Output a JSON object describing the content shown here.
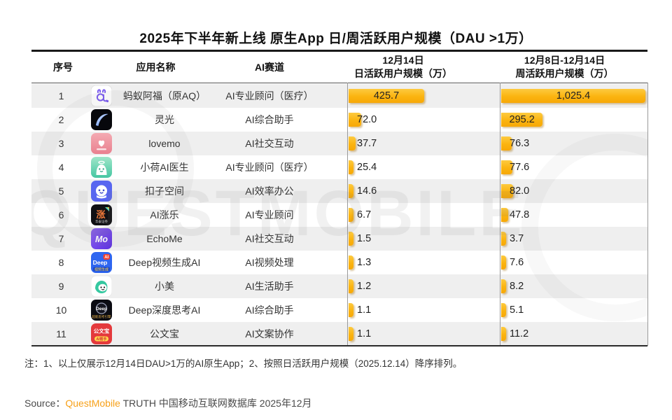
{
  "title": "2025年下半年新上线 原生App 日/周活跃用户规模（DAU >1万）",
  "table": {
    "columns": {
      "num": "序号",
      "name": "应用名称",
      "track": "AI赛道",
      "dau_line1": "12月14日",
      "dau_line2": "日活跃用户规模（万）",
      "wau_line1": "12月8日-12月14日",
      "wau_line2": "周活跃用户规模（万）"
    },
    "rows": [
      {
        "num": "1",
        "icon": "aq",
        "name": "蚂蚁阿福（原AQ）",
        "track": "AI专业顾问（医疗）",
        "dau": 425.7,
        "dau_label": "425.7",
        "wau": 1025.4,
        "wau_label": "1,025.4"
      },
      {
        "num": "2",
        "icon": "lingguang",
        "name": "灵光",
        "track": "AI综合助手",
        "dau": 72.0,
        "dau_label": "72.0",
        "wau": 295.2,
        "wau_label": "295.2"
      },
      {
        "num": "3",
        "icon": "lovemo",
        "name": "lovemo",
        "track": "AI社交互动",
        "dau": 37.7,
        "dau_label": "37.7",
        "wau": 76.3,
        "wau_label": "76.3"
      },
      {
        "num": "4",
        "icon": "xiaohe",
        "name": "小荷AI医生",
        "track": "AI专业顾问（医疗）",
        "dau": 25.4,
        "dau_label": "25.4",
        "wau": 77.6,
        "wau_label": "77.6"
      },
      {
        "num": "5",
        "icon": "kouzi",
        "name": "扣子空间",
        "track": "AI效率办公",
        "dau": 14.6,
        "dau_label": "14.6",
        "wau": 82.0,
        "wau_label": "82.0"
      },
      {
        "num": "6",
        "icon": "zhangle",
        "name": "AI涨乐",
        "track": "AI专业顾问",
        "dau": 6.7,
        "dau_label": "6.7",
        "wau": 47.8,
        "wau_label": "47.8"
      },
      {
        "num": "7",
        "icon": "echome",
        "name": "EchoMe",
        "track": "AI社交互动",
        "dau": 1.5,
        "dau_label": "1.5",
        "wau": 3.7,
        "wau_label": "3.7"
      },
      {
        "num": "8",
        "icon": "deepvideo",
        "name": "Deep视频生成AI",
        "track": "AI视频处理",
        "dau": 1.3,
        "dau_label": "1.3",
        "wau": 7.6,
        "wau_label": "7.6"
      },
      {
        "num": "9",
        "icon": "xiaomei",
        "name": "小美",
        "track": "AI生活助手",
        "dau": 1.2,
        "dau_label": "1.2",
        "wau": 8.2,
        "wau_label": "8.2"
      },
      {
        "num": "10",
        "icon": "deepthink",
        "name": "Deep深度思考AI",
        "track": "AI综合助手",
        "dau": 1.1,
        "dau_label": "1.1",
        "wau": 5.1,
        "wau_label": "5.1"
      },
      {
        "num": "11",
        "icon": "gongwenbao",
        "name": "公文宝",
        "track": "AI文案协作",
        "dau": 1.1,
        "dau_label": "1.1",
        "wau": 11.2,
        "wau_label": "11.2"
      }
    ]
  },
  "chart_data": {
    "type": "bar",
    "orientation": "horizontal",
    "title": "2025年下半年新上线 原生App 日/周活跃用户规模（DAU >1万）",
    "categories": [
      "蚂蚁阿福（原AQ）",
      "灵光",
      "lovemo",
      "小荷AI医生",
      "扣子空间",
      "AI涨乐",
      "EchoMe",
      "Deep视频生成AI",
      "小美",
      "Deep深度思考AI",
      "公文宝"
    ],
    "series": [
      {
        "name": "12月14日 日活跃用户规模（万）",
        "values": [
          425.7,
          72.0,
          37.7,
          25.4,
          14.6,
          6.7,
          1.5,
          1.3,
          1.2,
          1.1,
          1.1
        ]
      },
      {
        "name": "12月8日-12月14日 周活跃用户规模（万）",
        "values": [
          1025.4,
          295.2,
          76.3,
          77.6,
          82.0,
          47.8,
          3.7,
          7.6,
          8.2,
          5.1,
          11.2
        ]
      }
    ],
    "xlabel": "活跃用户规模（万）",
    "ylabel": "应用名称",
    "legend_position": "column-headers",
    "grid": false,
    "axis_ranges": {
      "dau_max": 425.7,
      "wau_max": 1025.4
    }
  },
  "note": "注：1、以上仅展示12月14日DAU>1万的AI原生App；2、按照日活跃用户规模（2025.12.14）降序排列。",
  "source": {
    "label": "Source：",
    "brand": "QuestMobile",
    "rest": " TRUTH 中国移动互联网数据库 2025年12月"
  },
  "watermark": "QUESTMOBILE",
  "colors": {
    "bar": "#FBB410",
    "bar_light": "#FDCA40",
    "stripe": "#EFEFEF",
    "brand_orange": "#F7A11A",
    "rule": "#1A1A1A"
  }
}
